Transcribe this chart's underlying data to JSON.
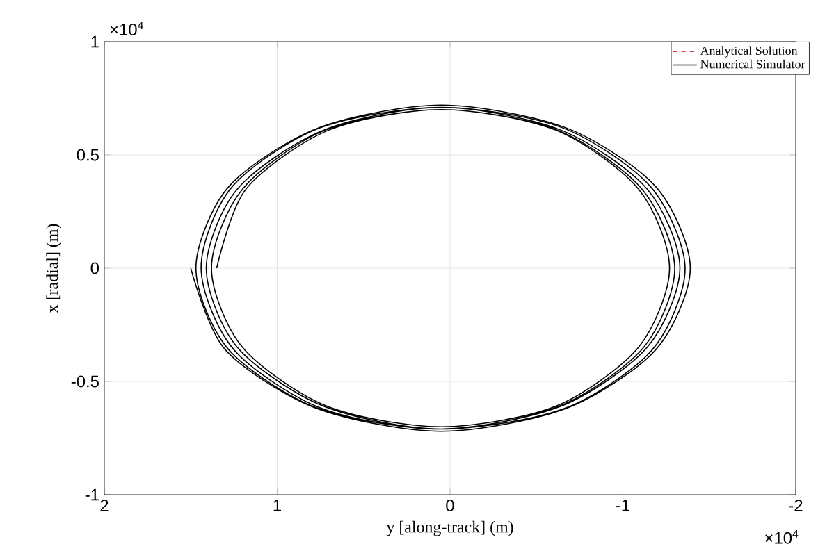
{
  "chart_data": {
    "type": "line",
    "xlabel": "y [along-track] (m)",
    "ylabel": "x [radial] (m)",
    "annotations": [
      "×10$^{4}$",
      "×10$^{4}$"
    ],
    "xlim": [
      2,
      -2
    ],
    "ylim": [
      -1,
      1
    ],
    "xticks": [
      2,
      1,
      0,
      -1,
      -2
    ],
    "yticks": [
      -1,
      -0.5,
      0,
      0.5,
      1
    ],
    "grid": true,
    "legend": "top right",
    "series": [
      {
        "name": "Analytical Solution",
        "color": "#e8323c",
        "line_style": "dashed"
      },
      {
        "name": "Numerical Simulator",
        "color": "#000000",
        "line_style": "solid",
        "x": [
          1.35,
          1.18,
          0.7,
          0.05,
          -0.61,
          -1.09,
          -1.27,
          -1.09,
          -0.61,
          0.05,
          0.71,
          1.2,
          1.38,
          1.2,
          0.72,
          0.05,
          -0.62,
          -1.11,
          -1.3,
          -1.12,
          -0.63,
          0.05,
          0.73,
          1.23,
          1.41,
          1.23,
          0.73,
          0.05,
          -0.64,
          -1.14,
          -1.33,
          -1.14,
          -0.64,
          0.05,
          0.74,
          1.25,
          1.44,
          1.26,
          0.75,
          0.05,
          -0.65,
          -1.16,
          -1.36,
          -1.17,
          -0.66,
          0.05,
          0.76,
          1.28,
          1.47,
          1.28,
          0.76,
          0.05,
          -0.67,
          -1.19,
          -1.39,
          -1.19,
          -0.67,
          0.05,
          0.77,
          1.3,
          1.5
        ],
        "values": [
          0,
          0.35,
          0.61,
          0.7,
          0.61,
          0.35,
          0,
          -0.35,
          -0.61,
          -0.7,
          -0.61,
          -0.35,
          0,
          0.35,
          0.61,
          0.7,
          0.61,
          0.35,
          0,
          -0.35,
          -0.61,
          -0.71,
          -0.61,
          -0.35,
          0,
          0.35,
          0.61,
          0.71,
          0.61,
          0.35,
          0,
          -0.35,
          -0.61,
          -0.71,
          -0.62,
          -0.36,
          0,
          0.36,
          0.62,
          0.71,
          0.62,
          0.36,
          0,
          -0.36,
          -0.62,
          -0.71,
          -0.62,
          -0.36,
          0,
          0.36,
          0.62,
          0.72,
          0.62,
          0.36,
          0,
          -0.36,
          -0.62,
          -0.72,
          -0.62,
          -0.36,
          0
        ]
      }
    ]
  }
}
